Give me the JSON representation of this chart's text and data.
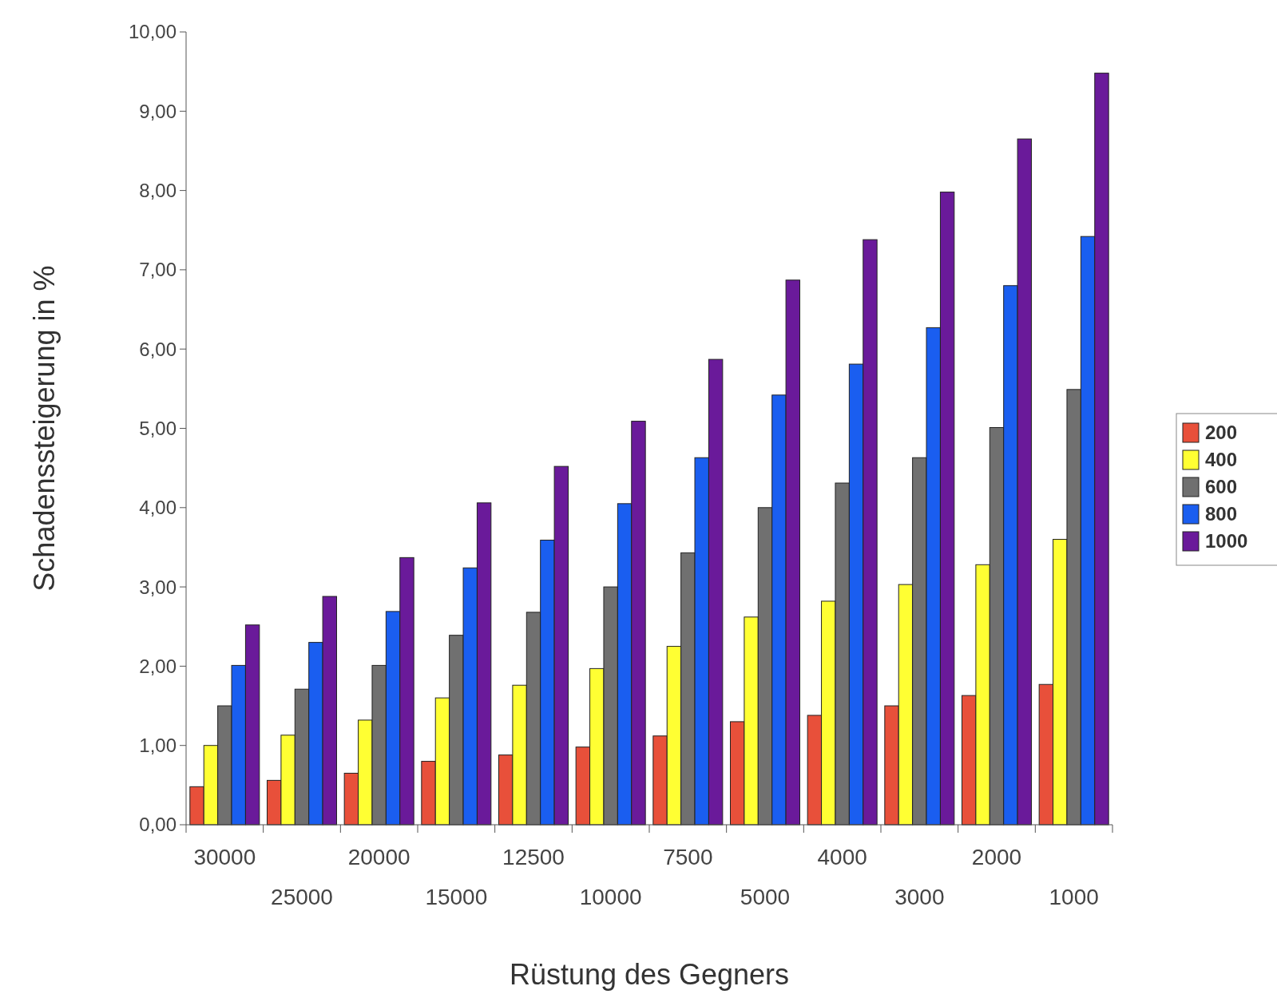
{
  "chart_data": {
    "type": "bar",
    "xlabel": "Rüstung des Gegners",
    "ylabel": "Schadenssteigerung in %",
    "categories": [
      "30000",
      "25000",
      "20000",
      "15000",
      "12500",
      "10000",
      "7500",
      "5000",
      "4000",
      "3000",
      "2000",
      "1000"
    ],
    "series": [
      {
        "name": "200",
        "color": "#e8503a",
        "values": [
          0.48,
          0.56,
          0.65,
          0.8,
          0.88,
          0.98,
          1.12,
          1.3,
          1.38,
          1.5,
          1.63,
          1.77
        ]
      },
      {
        "name": "400",
        "color": "#ffff33",
        "values": [
          1.0,
          1.13,
          1.32,
          1.6,
          1.76,
          1.97,
          2.25,
          2.62,
          2.82,
          3.03,
          3.28,
          3.6
        ]
      },
      {
        "name": "600",
        "color": "#707070",
        "values": [
          1.5,
          1.71,
          2.01,
          2.39,
          2.68,
          3.0,
          3.43,
          4.0,
          4.31,
          4.63,
          5.01,
          5.49
        ]
      },
      {
        "name": "800",
        "color": "#1a5ef0",
        "values": [
          2.01,
          2.3,
          2.69,
          3.24,
          3.59,
          4.05,
          4.63,
          5.42,
          5.81,
          6.27,
          6.8,
          7.42
        ]
      },
      {
        "name": "1000",
        "color": "#6a1a9a",
        "values": [
          2.52,
          2.88,
          3.37,
          4.06,
          4.52,
          5.09,
          5.87,
          6.87,
          7.38,
          7.98,
          8.65,
          9.48
        ]
      }
    ],
    "ylim": [
      0,
      10
    ],
    "yticks": [
      {
        "value": 0,
        "label": "0,00"
      },
      {
        "value": 1,
        "label": "1,00"
      },
      {
        "value": 2,
        "label": "2,00"
      },
      {
        "value": 3,
        "label": "3,00"
      },
      {
        "value": 4,
        "label": "4,00"
      },
      {
        "value": 5,
        "label": "5,00"
      },
      {
        "value": 6,
        "label": "6,00"
      },
      {
        "value": 7,
        "label": "7,00"
      },
      {
        "value": 8,
        "label": "8,00"
      },
      {
        "value": 9,
        "label": "9,00"
      },
      {
        "value": 10,
        "label": "10,00"
      }
    ],
    "grid": false,
    "legend": "right"
  }
}
